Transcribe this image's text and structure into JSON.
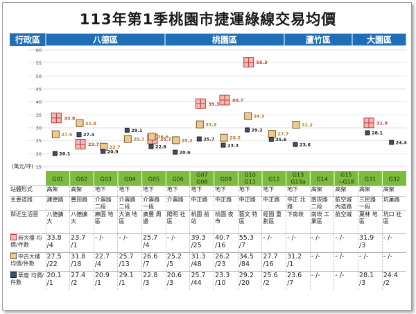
{
  "title": "113年第1季桃園市捷運綠線交易均價",
  "header": {
    "row_label": "行政區",
    "districts": [
      "八德區",
      "桃園區",
      "蘆竹區",
      "大園區"
    ]
  },
  "y_unit_label": "(萬元/坪)",
  "colors": {
    "header_blue": "#1f6fb7",
    "station_green": "#7dbb3c",
    "new_marker": "#f0b8b8",
    "new_border": "#c0392b",
    "mid_marker": "#f3c98b",
    "old_marker": "#3b4f6b",
    "label_new": "#c0392b",
    "label_mid": "#b8791a",
    "label_old": "#222222"
  },
  "chart_data": {
    "type": "scatter",
    "title": "113年第1季桃園市捷運綠線交易均價",
    "ylabel": "(萬元/坪)",
    "ylim": [
      15,
      60
    ],
    "yticks": [
      15,
      20,
      25,
      30,
      35,
      40,
      45,
      50,
      55,
      60
    ],
    "categories": [
      "G01",
      "G02",
      "G03",
      "G04",
      "G05",
      "G06",
      "G07 G08",
      "G09",
      "G10 G11",
      "G12",
      "G13 G13a",
      "G14",
      "G15 ~G18",
      "G31",
      "G32"
    ],
    "series": [
      {
        "name": "新大樓",
        "values": [
          33.8,
          23.7,
          null,
          null,
          25.7,
          null,
          39.3,
          40.7,
          55.3,
          null,
          null,
          null,
          null,
          31.9,
          null
        ]
      },
      {
        "name": "中古大樓",
        "values": [
          27.5,
          31.8,
          22.7,
          25.7,
          26.6,
          25.2,
          31.3,
          26.2,
          34.5,
          27.7,
          31.2,
          null,
          null,
          null,
          null
        ]
      },
      {
        "name": "華廈",
        "values": [
          20.1,
          27.4,
          20.9,
          29.1,
          22.8,
          20.6,
          25.7,
          23.3,
          29.2,
          25.6,
          23.6,
          null,
          null,
          28.1,
          24.4
        ]
      }
    ]
  },
  "table": {
    "labels": {
      "type": "站體形式",
      "road": "主要道路",
      "area": "鄰近生活圈",
      "new": "新大樓 均價/件數",
      "mid": "中古大樓 均價/件數",
      "old": "華廈 均價/件數"
    },
    "columns": [
      {
        "type": "高架",
        "road": "建德路",
        "area": "八德擴大",
        "new": "33.8 /4",
        "mid": "27.5 /22",
        "old": "20.1 /1"
      },
      {
        "type": "高架",
        "road": "豐田路",
        "area": "八德擴大",
        "new": "23.7 /1",
        "mid": "31.8 /18",
        "old": "27.4 /2"
      },
      {
        "type": "地下",
        "road": "介壽路 二段",
        "area": "麻園 地區",
        "new": "- /-",
        "mid": "22.7 /4",
        "old": "20.9 /1"
      },
      {
        "type": "地下",
        "road": "介壽路 二段",
        "area": "大湳 地區",
        "new": "- /-",
        "mid": "25.7 /13",
        "old": "29.1 /1"
      },
      {
        "type": "地下",
        "road": "介壽路 一段",
        "area": "廣豐 周邊",
        "new": "25.7 /4",
        "mid": "26.6 /7",
        "old": "22.8 /3"
      },
      {
        "type": "地下",
        "road": "介壽路",
        "area": "陽明 社區",
        "new": "- /-",
        "mid": "25.2 /5",
        "old": "20.6 /3"
      },
      {
        "type": "地下",
        "road": "中正路",
        "area": "桃園 前站",
        "new": "39.3 /25",
        "mid": "31.3 /48",
        "old": "25.7 /44"
      },
      {
        "type": "地下",
        "road": "中正路",
        "area": "桃園 夜市",
        "new": "40.7 /16",
        "mid": "26.2 /23",
        "old": "23.3 /10"
      },
      {
        "type": "地下",
        "road": "中正路",
        "area": "藝文 特區",
        "new": "55.3 /7",
        "mid": "34.5 /84",
        "old": "29.2 /20"
      },
      {
        "type": "地下",
        "road": "中正路",
        "area": "經國 重劃區",
        "new": "- /-",
        "mid": "27.7 /16",
        "old": "25.6 /2"
      },
      {
        "type": "地下",
        "road": "中正 北路",
        "area": "下南崁",
        "new": "- /-",
        "mid": "31.2 /1",
        "old": "23.6 /7"
      },
      {
        "type": "高架",
        "road": "南崁路 二段",
        "area": "南崁 工業區",
        "new": "- /-",
        "mid": "- /-",
        "old": "- /-"
      },
      {
        "type": "高架",
        "road": "航空城 內道路",
        "area": "航空城",
        "new": "- /-",
        "mid": "- /-",
        "old": "- /-"
      },
      {
        "type": "高架",
        "road": "三民路 一段",
        "area": "菓林 地區",
        "new": "31.9 /3",
        "mid": "- /-",
        "old": "28.1 /3"
      },
      {
        "type": "高架",
        "road": "坑菓路",
        "area": "坑口 社區",
        "new": "- /-",
        "mid": "- /-",
        "old": "24.4 /2"
      }
    ]
  }
}
